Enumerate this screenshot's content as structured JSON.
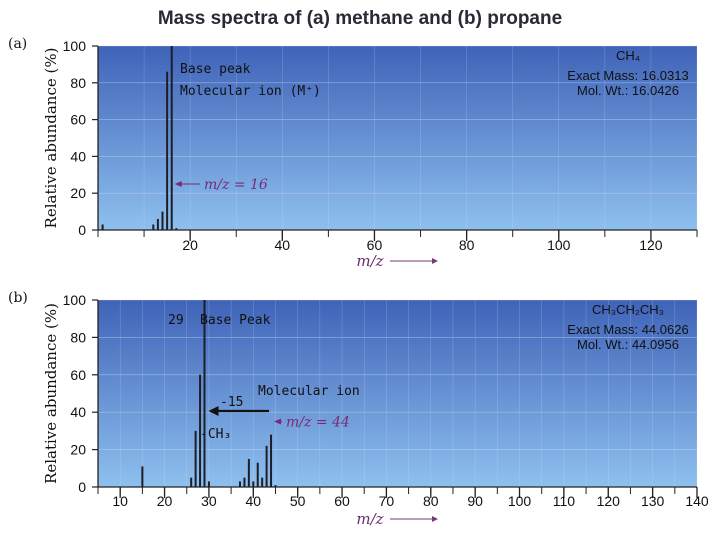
{
  "title": "Mass spectra of (a) methane and (b) propane",
  "colors": {
    "panel_top": "#3f63b8",
    "panel_bottom": "#8ec0ee",
    "peak": "#1e1e28",
    "arrow_label": "#7a2a78",
    "text": "#111111"
  },
  "chart_data": [
    {
      "type": "bar",
      "panel_label": "(a)",
      "ylabel": "Relative abundance (%)",
      "xlabel": "m/z",
      "xlim": [
        0,
        130
      ],
      "ylim": [
        0,
        100
      ],
      "x_ticks": [
        20,
        40,
        60,
        80,
        100,
        120
      ],
      "y_ticks": [
        0,
        20,
        40,
        60,
        80,
        100
      ],
      "grid": true,
      "peaks": {
        "x": [
          1,
          12,
          13,
          14,
          15,
          16,
          17
        ],
        "y": [
          3,
          3,
          6,
          10,
          86,
          100,
          1
        ]
      },
      "info": [
        "CH₄",
        "Exact Mass: 16.0313",
        "Mol. Wt.: 16.0426"
      ],
      "peak_label": "m/z = 16",
      "annotation": [
        "Base peak",
        "Molecular ion (M⁺)"
      ]
    },
    {
      "type": "bar",
      "panel_label": "(b)",
      "ylabel": "Relative abundance (%)",
      "xlabel": "m/z",
      "xlim": [
        5,
        140
      ],
      "ylim": [
        0,
        100
      ],
      "x_ticks": [
        10,
        20,
        30,
        40,
        50,
        60,
        70,
        80,
        90,
        100,
        110,
        120,
        130,
        140
      ],
      "y_ticks": [
        0,
        20,
        40,
        60,
        80,
        100
      ],
      "grid": true,
      "peaks": {
        "x": [
          15,
          26,
          27,
          28,
          29,
          30,
          37,
          38,
          39,
          40,
          41,
          42,
          43,
          44,
          45
        ],
        "y": [
          11,
          5,
          30,
          60,
          100,
          3,
          3,
          5,
          15,
          3,
          13,
          5,
          22,
          28,
          1
        ]
      },
      "info": [
        "CH₃CH₂CH₃",
        "Exact Mass: 44.0626",
        "Mol. Wt.: 44.0956"
      ],
      "peak_label": "m/z = 44",
      "annotation": {
        "base_value": "29",
        "base": "Base Peak",
        "molecular": "Molecular ion",
        "loss": "-15",
        "fragment": "-CH₃"
      }
    }
  ]
}
